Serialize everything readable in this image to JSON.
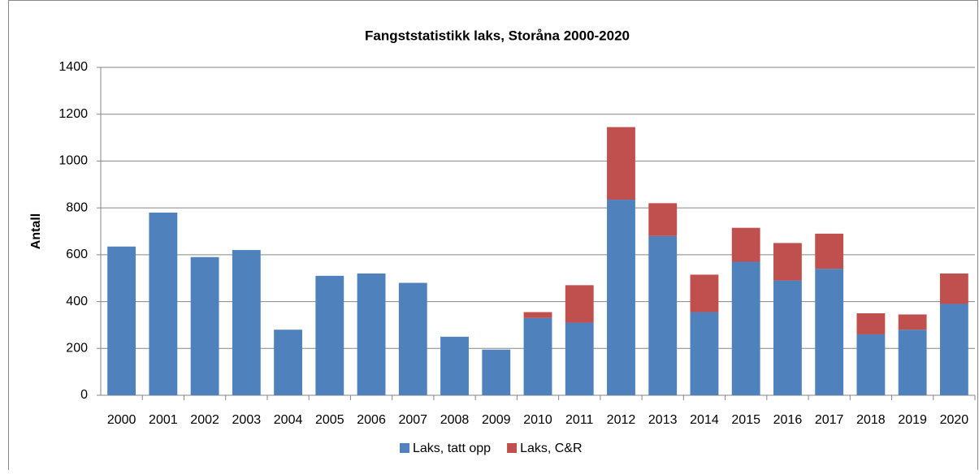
{
  "chart_data": {
    "type": "stacked_bar",
    "title": "Fangststatistikk laks, Storåna 2000-2020",
    "y_label": "Antall",
    "categories": [
      "2000",
      "2001",
      "2002",
      "2003",
      "2004",
      "2005",
      "2006",
      "2007",
      "2008",
      "2009",
      "2010",
      "2011",
      "2012",
      "2013",
      "2014",
      "2015",
      "2016",
      "2017",
      "2018",
      "2019",
      "2020"
    ],
    "series": [
      {
        "name": "Laks, tatt opp",
        "color": "#4f81bd",
        "values": [
          635,
          780,
          590,
          620,
          280,
          510,
          520,
          480,
          250,
          195,
          330,
          310,
          835,
          680,
          355,
          570,
          490,
          540,
          260,
          280,
          390
        ]
      },
      {
        "name": "Laks, C&R",
        "color": "#c0504d",
        "values": [
          0,
          0,
          0,
          0,
          0,
          0,
          0,
          0,
          0,
          0,
          25,
          160,
          310,
          140,
          160,
          145,
          160,
          150,
          90,
          65,
          130
        ]
      }
    ],
    "ylim": [
      0,
      1400
    ],
    "yticks": [
      0,
      200,
      400,
      600,
      800,
      1000,
      1200,
      1400
    ],
    "grid": true,
    "legend": "bottom"
  }
}
